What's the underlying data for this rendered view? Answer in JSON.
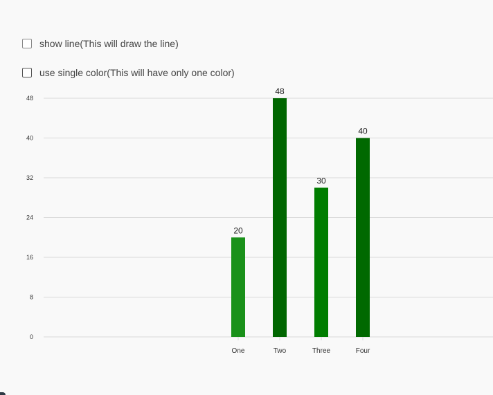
{
  "options": [
    {
      "label": "show line(This will draw the line)",
      "checked": false
    },
    {
      "label": "use single color(This will have only one color)",
      "checked": false
    }
  ],
  "chart_data": {
    "type": "bar",
    "title": "",
    "xlabel": "",
    "ylabel": "",
    "categories": [
      "One",
      "Two",
      "Three",
      "Four"
    ],
    "values": [
      20,
      48,
      30,
      40
    ],
    "ylim": [
      0,
      48
    ],
    "yticks": [
      0,
      8,
      16,
      24,
      32,
      40,
      48
    ],
    "grid": true,
    "data_labels": true,
    "colors": [
      "#1a911a",
      "#006600",
      "#007d00",
      "#006900"
    ]
  }
}
